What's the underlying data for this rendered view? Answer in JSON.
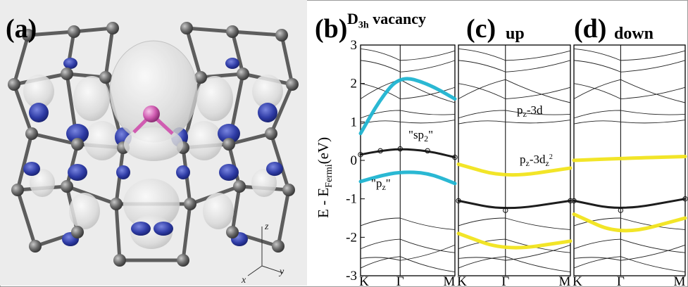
{
  "figure": {
    "panels": [
      {
        "id": "a",
        "label": "(a)",
        "title": ""
      },
      {
        "id": "b",
        "label": "(b)",
        "title_main": "D",
        "title_sub": "3h",
        "title_rest": " vacancy"
      },
      {
        "id": "c",
        "label": "(c)",
        "title": "up"
      },
      {
        "id": "d",
        "label": "(d)",
        "title": "down"
      }
    ],
    "axes_label": {
      "main": "E - E",
      "sub": "Fermi",
      "unit": "(eV)"
    },
    "axis3d": {
      "z": "z",
      "x": "x",
      "y": "y"
    },
    "annotations": {
      "sp2": "\"sp",
      "sp2_sub": "2",
      "pz": "\"p",
      "pz_sub": "z",
      "pz_3d": "p",
      "pz_3d_sub": "z",
      "pz_3d_rest": "-3d",
      "pz_3dz2_main": "p",
      "pz_3dz2_sub": "z",
      "pz_3dz2_rest": "-3d",
      "pz_3dz2_sub2": "z",
      "pz_3dz2_sup": "2"
    },
    "colors": {
      "cyan": "#1fb4d1",
      "yellow": "#f1e41c",
      "orange": "#ee7b22",
      "black": "#111111",
      "atom": "#6d6d6d",
      "orbital_blue": "#2d3a9e",
      "orbital_grey": "#dcdcdc",
      "dopant": "#d35fb4"
    }
  },
  "chart_data": [
    {
      "type": "line",
      "panel": "b",
      "title": "D3h vacancy",
      "ylabel": "E - EFermi(eV)",
      "ylim": [
        -3,
        3
      ],
      "yticks": [
        3,
        2,
        1,
        0,
        -1,
        -2,
        -3
      ],
      "xticks": [
        "K",
        "Γ",
        "M"
      ],
      "series": [
        {
          "color": "#1fb4d1",
          "values": [
            [
              0,
              -0.55
            ],
            [
              0.25,
              -0.4
            ],
            [
              0.5,
              -0.3
            ],
            [
              0.75,
              -0.32
            ],
            [
              1,
              -0.6
            ]
          ]
        },
        {
          "color": "#111111",
          "values": [
            [
              0,
              0.15
            ],
            [
              0.25,
              0.25
            ],
            [
              0.5,
              0.3
            ],
            [
              0.75,
              0.25
            ],
            [
              1,
              0.08
            ]
          ]
        },
        {
          "color": "#1fb4d1",
          "values": [
            [
              0,
              0.7
            ],
            [
              0.25,
              1.6
            ],
            [
              0.5,
              2.2
            ],
            [
              0.75,
              2.0
            ],
            [
              1,
              1.6
            ]
          ]
        }
      ]
    },
    {
      "type": "line",
      "panel": "c",
      "title": "up",
      "ylim": [
        -3,
        3
      ],
      "xticks": [
        "K",
        "Γ",
        "M"
      ],
      "series": [
        {
          "color": "#f1e41c",
          "values": [
            [
              0,
              -0.1
            ],
            [
              0.5,
              -0.45
            ],
            [
              1,
              -0.2
            ]
          ]
        },
        {
          "color": "#111111",
          "values": [
            [
              0,
              -1.05
            ],
            [
              0.5,
              -1.3
            ],
            [
              1,
              -1.05
            ]
          ]
        },
        {
          "color": "#f1e41c",
          "values": [
            [
              0,
              -1.9
            ],
            [
              0.5,
              -2.35
            ],
            [
              1,
              -2.1
            ]
          ]
        }
      ]
    },
    {
      "type": "line",
      "panel": "d",
      "title": "down",
      "ylim": [
        -3,
        3
      ],
      "xticks": [
        "K",
        "Γ",
        "M"
      ],
      "series": [
        {
          "color": "#f1e41c",
          "values": [
            [
              0,
              0.0
            ],
            [
              0.5,
              0.05
            ],
            [
              1,
              0.1
            ]
          ]
        },
        {
          "color": "#111111",
          "values": [
            [
              0,
              -1.05
            ],
            [
              0.5,
              -1.3
            ],
            [
              1,
              -1.0
            ]
          ]
        },
        {
          "color": "#f1e41c",
          "values": [
            [
              0,
              -1.4
            ],
            [
              0.5,
              -1.95
            ],
            [
              1,
              -1.5
            ]
          ]
        }
      ]
    }
  ]
}
